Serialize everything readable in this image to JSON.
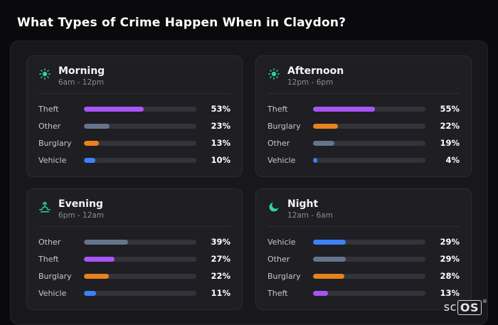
{
  "page": {
    "title": "What Types of Crime Happen When in Claydon?",
    "brand": {
      "prefix": "sc",
      "suffix": "OS",
      "reg": "®"
    }
  },
  "colors": {
    "theft": "#a855f7",
    "other": "#64748b",
    "burglary": "#e8821e",
    "vehicle": "#3b82f6",
    "icon_accent": "#34d399",
    "track": "#33333b",
    "panel": "#18181c",
    "card": "#1e1e23",
    "background": "#0a0a0c"
  },
  "chart_data": [
    {
      "type": "bar",
      "title": "Morning",
      "subtitle": "6am - 12pm",
      "icon": "sun-icon",
      "unit": "%",
      "xlim": [
        0,
        100
      ],
      "categories": [
        "Theft",
        "Other",
        "Burglary",
        "Vehicle"
      ],
      "values": [
        53,
        23,
        13,
        10
      ]
    },
    {
      "type": "bar",
      "title": "Afternoon",
      "subtitle": "12pm - 6pm",
      "icon": "sun-icon",
      "unit": "%",
      "xlim": [
        0,
        100
      ],
      "categories": [
        "Theft",
        "Burglary",
        "Other",
        "Vehicle"
      ],
      "values": [
        55,
        22,
        19,
        4
      ]
    },
    {
      "type": "bar",
      "title": "Evening",
      "subtitle": "6pm - 12am",
      "icon": "sunset-icon",
      "unit": "%",
      "xlim": [
        0,
        100
      ],
      "categories": [
        "Other",
        "Theft",
        "Burglary",
        "Vehicle"
      ],
      "values": [
        39,
        27,
        22,
        11
      ]
    },
    {
      "type": "bar",
      "title": "Night",
      "subtitle": "12am - 6am",
      "icon": "moon-icon",
      "unit": "%",
      "xlim": [
        0,
        100
      ],
      "categories": [
        "Vehicle",
        "Other",
        "Burglary",
        "Theft"
      ],
      "values": [
        29,
        29,
        28,
        13
      ]
    }
  ]
}
